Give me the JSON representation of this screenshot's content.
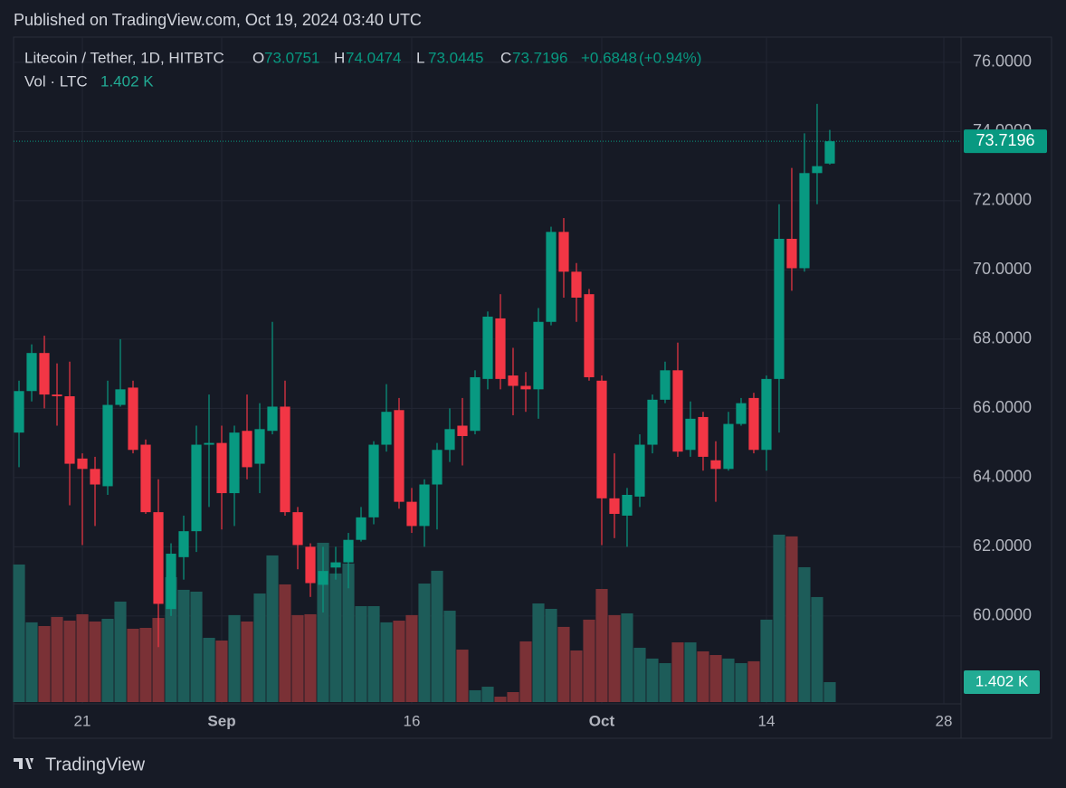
{
  "header": "Published on TradingView.com, Oct 19, 2024 03:40 UTC",
  "footer": "TradingView",
  "chart_data": {
    "type": "candlestick",
    "title": "Litecoin / Tether, 1D, HITBTC",
    "ohlc_labels": [
      "O",
      "H",
      "L",
      "C"
    ],
    "change": {
      "value": 0.6848,
      "label": "+0.6848"
    },
    "change_pct": {
      "value": 0.94,
      "label": "(+0.94%)"
    },
    "volume_title": "Vol · LTC",
    "x": [
      0,
      1,
      2,
      3,
      4,
      5,
      6,
      7,
      8,
      9,
      10,
      11,
      12,
      13,
      14,
      15,
      16,
      17,
      18,
      19,
      20,
      21,
      22,
      23,
      24,
      25,
      26,
      27,
      28,
      29,
      30,
      31,
      32,
      33,
      34,
      35,
      36,
      37,
      38,
      39,
      40,
      41,
      42,
      43,
      44,
      45,
      46,
      47,
      48,
      49,
      50,
      51,
      52,
      53,
      54,
      55,
      56,
      57,
      58,
      59,
      60,
      61,
      62,
      63,
      64
    ],
    "open": [
      65.3,
      66.5,
      67.6,
      66.4,
      66.35,
      64.55,
      64.25,
      63.75,
      66.1,
      66.6,
      64.95,
      63.0,
      60.2,
      61.7,
      62.45,
      64.95,
      65.0,
      63.55,
      65.35,
      64.4,
      65.35,
      66.05,
      63.0,
      62.0,
      60.9,
      61.4,
      61.55,
      62.2,
      62.85,
      64.95,
      65.95,
      63.3,
      62.6,
      63.8,
      64.8,
      65.5,
      65.35,
      66.85,
      68.6,
      66.95,
      66.65,
      66.55,
      68.5,
      71.1,
      69.95,
      69.3,
      66.8,
      63.4,
      62.9,
      63.45,
      64.95,
      66.25,
      67.1,
      64.8,
      65.75,
      64.5,
      64.25,
      65.55,
      66.3,
      64.8,
      66.85,
      70.9,
      70.05,
      72.8,
      73.0751
    ],
    "high": [
      66.8,
      67.85,
      68.1,
      67.3,
      67.35,
      64.7,
      64.6,
      66.8,
      68.0,
      66.8,
      65.1,
      63.95,
      62.1,
      62.9,
      65.5,
      66.4,
      65.5,
      65.5,
      66.4,
      66.15,
      68.5,
      66.8,
      63.15,
      62.1,
      62.0,
      62.0,
      62.4,
      63.15,
      65.05,
      66.7,
      66.3,
      63.7,
      63.95,
      65.0,
      66.0,
      66.3,
      67.1,
      68.8,
      69.3,
      67.75,
      67.05,
      68.9,
      71.25,
      71.5,
      70.2,
      69.45,
      66.95,
      64.7,
      63.7,
      65.25,
      66.4,
      67.35,
      67.9,
      66.2,
      65.9,
      65.05,
      65.9,
      66.3,
      66.45,
      66.95,
      71.9,
      72.95,
      73.95,
      74.8,
      74.0474
    ],
    "low": [
      64.3,
      66.2,
      66.0,
      65.5,
      63.2,
      62.05,
      62.6,
      63.5,
      66.05,
      64.7,
      62.95,
      59.1,
      60.0,
      61.05,
      61.85,
      63.15,
      62.5,
      62.6,
      63.95,
      63.55,
      65.25,
      62.9,
      61.35,
      60.55,
      60.1,
      61.05,
      60.8,
      62.15,
      62.65,
      64.75,
      63.1,
      62.4,
      62.0,
      62.5,
      64.45,
      64.35,
      65.25,
      66.55,
      66.55,
      65.8,
      65.9,
      65.7,
      68.4,
      69.2,
      68.5,
      66.8,
      62.05,
      62.25,
      62.0,
      63.15,
      64.7,
      66.15,
      64.6,
      64.6,
      64.2,
      63.3,
      64.2,
      65.5,
      64.7,
      64.2,
      65.3,
      69.4,
      69.95,
      71.9,
      73.0445
    ],
    "close": [
      66.5,
      67.6,
      66.4,
      66.35,
      64.4,
      64.25,
      63.8,
      66.1,
      66.55,
      64.8,
      63.0,
      60.35,
      61.8,
      62.45,
      64.95,
      65.0,
      63.55,
      65.3,
      64.3,
      65.4,
      66.05,
      63.0,
      62.05,
      60.95,
      61.3,
      61.55,
      62.2,
      62.85,
      64.95,
      65.9,
      63.3,
      62.6,
      63.8,
      64.8,
      65.4,
      65.2,
      66.9,
      68.65,
      66.85,
      66.65,
      66.55,
      68.5,
      71.1,
      69.95,
      69.2,
      66.9,
      63.4,
      62.95,
      63.5,
      64.95,
      66.25,
      67.1,
      64.75,
      65.7,
      64.6,
      64.25,
      65.55,
      66.15,
      64.8,
      66.85,
      70.9,
      70.05,
      72.8,
      73.0,
      73.7196
    ],
    "volume": [
      9680,
      5610,
      5350,
      5990,
      5730,
      6180,
      5670,
      5860,
      7070,
      5160,
      5220,
      5920,
      8790,
      7900,
      7770,
      4520,
      4330,
      6120,
      5670,
      7640,
      10320,
      8280,
      6120,
      6180,
      11210,
      9050,
      9750,
      6750,
      6750,
      5610,
      5730,
      6120,
      8340,
      9240,
      6430,
      3690,
      830,
      1080,
      380,
      700,
      4270,
      6940,
      6560,
      5290,
      3630,
      5800,
      7960,
      6120,
      6240,
      3820,
      3060,
      2740,
      4200,
      4200,
      3570,
      3310,
      3060,
      2740,
      2870,
      5800,
      11780,
      11660,
      9490,
      7390,
      1402
    ],
    "volume_labels": [
      null,
      null,
      null,
      null,
      null,
      null,
      null,
      null,
      null,
      null,
      null,
      null,
      null,
      null,
      null,
      null,
      null,
      null,
      null,
      null,
      null,
      null,
      null,
      null,
      null,
      null,
      null,
      null,
      null,
      null,
      null,
      null,
      null,
      null,
      null,
      null,
      null,
      null,
      null,
      null,
      null,
      null,
      null,
      null,
      null,
      null,
      null,
      null,
      null,
      null,
      null,
      null,
      null,
      null,
      null,
      null,
      null,
      null,
      null,
      null,
      null,
      null,
      null,
      null,
      "1.402 K"
    ],
    "xlim": [
      -0.43,
      74.36
    ],
    "xticks": [
      {
        "value": 5,
        "label": "21"
      },
      {
        "value": 16,
        "label": "Sep"
      },
      {
        "value": 31,
        "label": "16"
      },
      {
        "value": 46,
        "label": "Oct"
      },
      {
        "value": 59,
        "label": "14"
      },
      {
        "value": 73,
        "label": "28"
      }
    ],
    "ylim": [
      57.46,
      76.73
    ],
    "yticks": [
      {
        "value": 60,
        "label": "60.0000"
      },
      {
        "value": 62,
        "label": "62.0000"
      },
      {
        "value": 64,
        "label": "64.0000"
      },
      {
        "value": 66,
        "label": "66.0000"
      },
      {
        "value": 68,
        "label": "68.0000"
      },
      {
        "value": 70,
        "label": "70.0000"
      },
      {
        "value": 72,
        "label": "72.0000"
      },
      {
        "value": 74,
        "label": "74.0000"
      },
      {
        "value": 76,
        "label": "76.0000"
      }
    ],
    "up_color": "#089981",
    "down_color": "#f23645",
    "up_volume_color": "#1d5c59",
    "down_volume_color": "#7a3136",
    "grid": true
  }
}
